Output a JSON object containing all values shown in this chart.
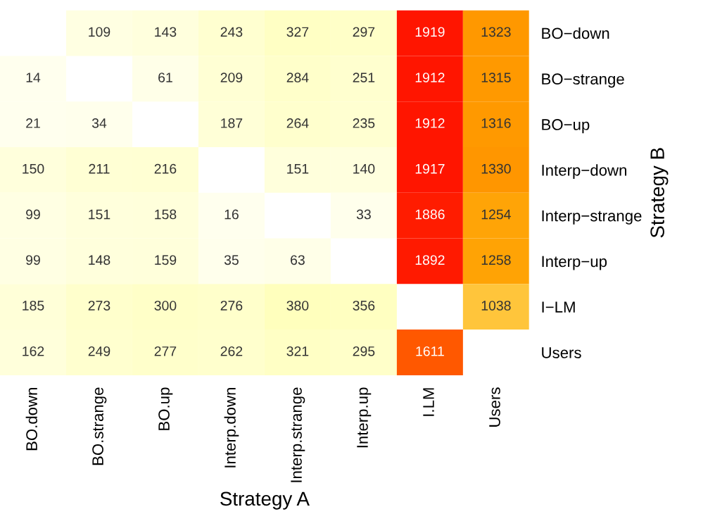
{
  "chart_data": {
    "type": "heatmap",
    "xlabel": "Strategy A",
    "ylabel": "Strategy B",
    "categories": [
      "BO.down",
      "BO.strange",
      "BO.up",
      "Interp.down",
      "Interp.strange",
      "Interp.up",
      "I.LM",
      "Users"
    ],
    "y_categories": [
      "BO−down",
      "BO−strange",
      "BO−up",
      "Interp−down",
      "Interp−strange",
      "Interp−up",
      "I−LM",
      "Users"
    ],
    "cells": [
      [
        null,
        109,
        143,
        243,
        327,
        297,
        1919,
        1323
      ],
      [
        14,
        null,
        61,
        209,
        284,
        251,
        1912,
        1315
      ],
      [
        21,
        34,
        null,
        187,
        264,
        235,
        1912,
        1316
      ],
      [
        150,
        211,
        216,
        null,
        151,
        140,
        1917,
        1330
      ],
      [
        99,
        151,
        158,
        16,
        null,
        33,
        1886,
        1254
      ],
      [
        99,
        148,
        159,
        35,
        63,
        null,
        1892,
        1258
      ],
      [
        185,
        273,
        300,
        276,
        380,
        356,
        null,
        1038
      ],
      [
        162,
        249,
        277,
        262,
        321,
        295,
        1611,
        null
      ]
    ],
    "data_labels": true
  }
}
